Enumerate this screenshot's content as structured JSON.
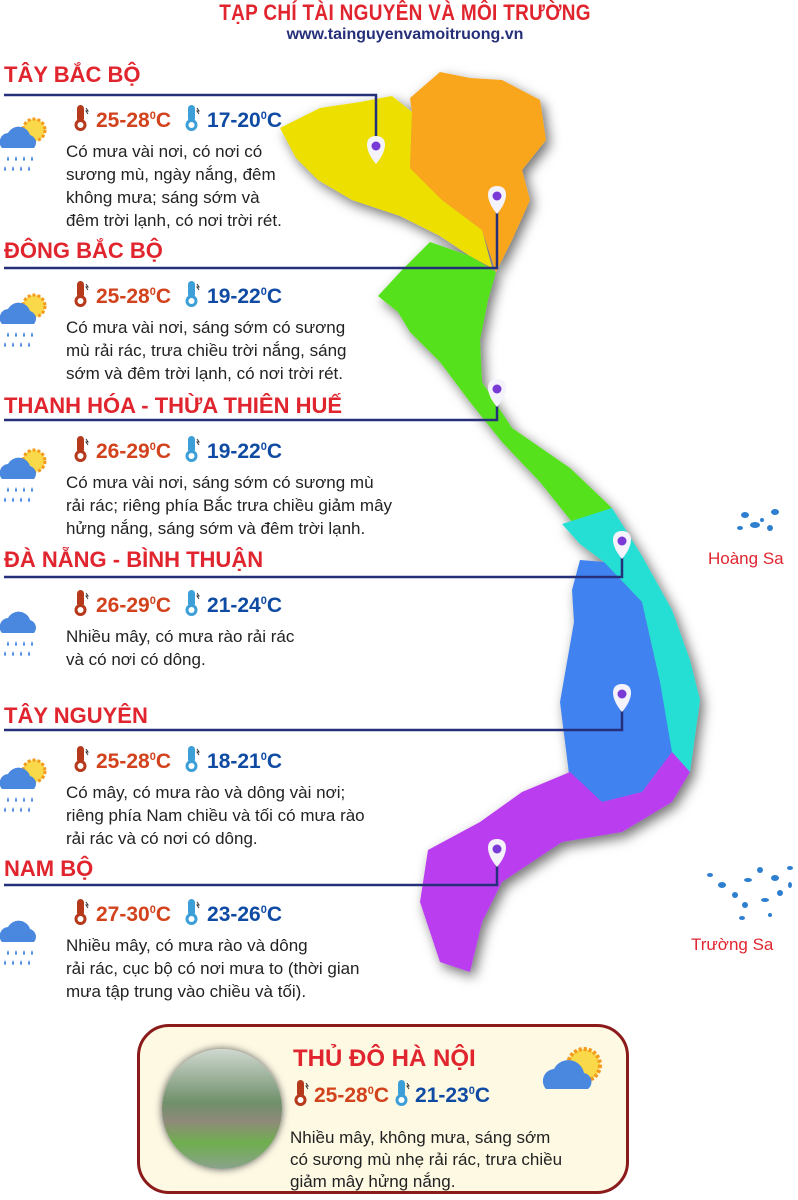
{
  "header": {
    "title": "TẠP CHÍ TÀI NGUYÊN VÀ MÔI TRƯỜNG",
    "url": "www.tainguyenvamoitruong.vn"
  },
  "colors": {
    "title_red": "#e0252f",
    "hot": "#d2421c",
    "cold": "#0f4aa3",
    "line": "#26307a",
    "region_tay_bac": "#ede000",
    "region_dong_bac": "#f9a61b",
    "region_bac_trung_bo": "#55e21c",
    "region_nam_trung_bo": "#25dfd4",
    "region_tay_nguyen": "#3f82f0",
    "region_nam_bo": "#bb3df0"
  },
  "regions": [
    {
      "name": "TÂY BẮC BỘ",
      "hot": "25-28",
      "cold": "17-20",
      "unit": "°C",
      "icon": "sun-cloud-rain-icon",
      "lines": [
        "Có mưa vài nơi, có nơi có",
        "sương mù, ngày nắng, đêm",
        "không mưa; sáng sớm và",
        "đêm trời lạnh, có nơi trời rét."
      ]
    },
    {
      "name": "ĐÔNG BẮC BỘ",
      "hot": "25-28",
      "cold": "19-22",
      "unit": "°C",
      "icon": "sun-cloud-rain-icon",
      "lines": [
        "Có mưa vài nơi, sáng sớm có sương",
        "mù rải rác, trưa chiều trời nắng, sáng",
        "sớm và đêm trời lạnh, có nơi trời rét."
      ]
    },
    {
      "name": "THANH HÓA - THỪA THIÊN HUẾ",
      "hot": "26-29",
      "cold": "19-22",
      "unit": "°C",
      "icon": "sun-cloud-rain-icon",
      "lines": [
        "Có mưa vài nơi, sáng sớm có sương mù",
        "rải rác; riêng phía Bắc trưa chiều giảm mây",
        "hửng nắng, sáng sớm và đêm trời lạnh."
      ]
    },
    {
      "name": "ĐÀ NẴNG - BÌNH THUẬN",
      "hot": "26-29",
      "cold": "21-24",
      "unit": "°C",
      "icon": "cloud-rain-icon",
      "lines": [
        "Nhiều mây, có mưa rào rải rác",
        "và có nơi có dông."
      ]
    },
    {
      "name": "TÂY NGUYÊN",
      "hot": "25-28",
      "cold": "18-21",
      "unit": "°C",
      "icon": "sun-cloud-rain-icon",
      "lines": [
        "Có mây, có mưa rào và dông vài nơi;",
        "riêng phía Nam chiều và tối có mưa rào",
        "rải rác và có nơi có dông."
      ]
    },
    {
      "name": "NAM BỘ",
      "hot": "27-30",
      "cold": "23-26",
      "unit": "°C",
      "icon": "cloud-rain-icon",
      "lines": [
        "Nhiều mây, có mưa rào và dông",
        "rải rác, cục bộ có nơi mưa to (thời gian",
        "mưa tập trung vào chiều và tối)."
      ]
    }
  ],
  "islands": {
    "hoang_sa": "Hoàng Sa",
    "truong_sa": "Trường Sa"
  },
  "hanoi": {
    "title": "THỦ ĐÔ HÀ NỘI",
    "hot": "25-28",
    "cold": "21-23",
    "unit": "°C",
    "icon": "sun-cloud-icon",
    "lines": [
      "Nhiều mây, không mưa, sáng sớm",
      "có sương mù nhẹ rải rác, trưa chiều",
      "giảm mây hửng nắng."
    ]
  }
}
